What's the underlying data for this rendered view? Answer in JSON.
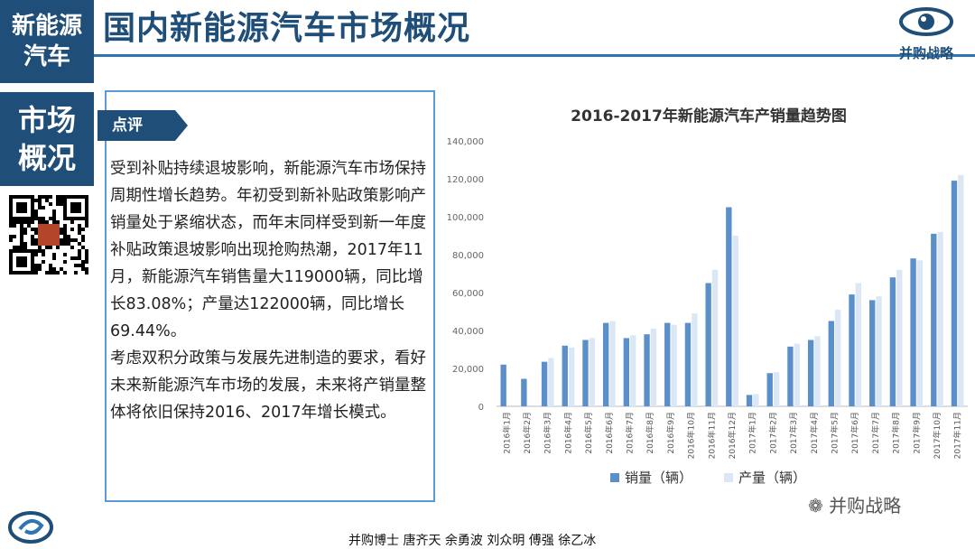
{
  "header": {
    "tag_top_line1": "新能源",
    "tag_top_line2": "汽车",
    "title": "国内新能源汽车市场概况",
    "brand_name": "并购战略"
  },
  "sidebar": {
    "tag_line1": "市场",
    "tag_line2": "概况",
    "qr_seal_text": "并购战略"
  },
  "comment": {
    "tag": "点评",
    "paragraphs": [
      "受到补贴持续退坡影响，新能源汽车市场保持周期性增长趋势。年初受到新补贴政策影响产销量处于紧缩状态，而年末同样受到新一年度补贴政策退坡影响出现抢购热潮，2017年11月，新能源汽车销售量大119000辆，同比增长83.08%；产量达122000辆，同比增长69.44%。",
      "考虑双积分政策与发展先进制造的要求，看好未来新能源汽车市场的发展，未来将产销量整体将依旧保持2016、2017年增长模式。"
    ]
  },
  "footer": {
    "authors": "并购博士 唐齐天 余勇波 刘众明 傅强 徐乙冰",
    "watermark": "并购战略"
  },
  "colors": {
    "sales": "#5b8fc9",
    "production": "#dbe7f5",
    "brand_dark": "#1f4e79",
    "accent": "#2e75b6"
  },
  "chart_data": {
    "type": "bar",
    "title": "2016-2017年新能源汽车产销量趋势图",
    "categories": [
      "2016年1月",
      "2016年2月",
      "2016年3月",
      "2016年4月",
      "2016年5月",
      "2016年6月",
      "2016年7月",
      "2016年8月",
      "2016年9月",
      "2016年10月",
      "2016年11月",
      "2016年12月",
      "2017年1月",
      "2017年2月",
      "2017年3月",
      "2017年4月",
      "2017年5月",
      "2017年6月",
      "2017年7月",
      "2017年8月",
      "2017年9月",
      "2017年10月",
      "2017年11月"
    ],
    "series": [
      {
        "name": "销量（辆）",
        "values": [
          22000,
          14500,
          23500,
          32000,
          35000,
          44000,
          36000,
          38000,
          44000,
          44000,
          65000,
          105000,
          6000,
          17500,
          31500,
          35000,
          45000,
          59000,
          56000,
          68000,
          78000,
          91000,
          119000
        ]
      },
      {
        "name": "产量（辆）",
        "values": [
          0,
          0,
          25500,
          31000,
          36000,
          45000,
          37500,
          41000,
          43000,
          49000,
          72000,
          90000,
          6500,
          18000,
          33000,
          37000,
          51000,
          65000,
          58000,
          72000,
          77000,
          92000,
          122000
        ]
      }
    ],
    "ylim": [
      0,
      140000
    ],
    "yticks": [
      0,
      20000,
      40000,
      60000,
      80000,
      100000,
      120000,
      140000
    ],
    "ytick_labels": [
      "0",
      "20,000",
      "40,000",
      "60,000",
      "80,000",
      "100,000",
      "120,000",
      "140,000"
    ],
    "grid": false,
    "legend": "bottom"
  }
}
